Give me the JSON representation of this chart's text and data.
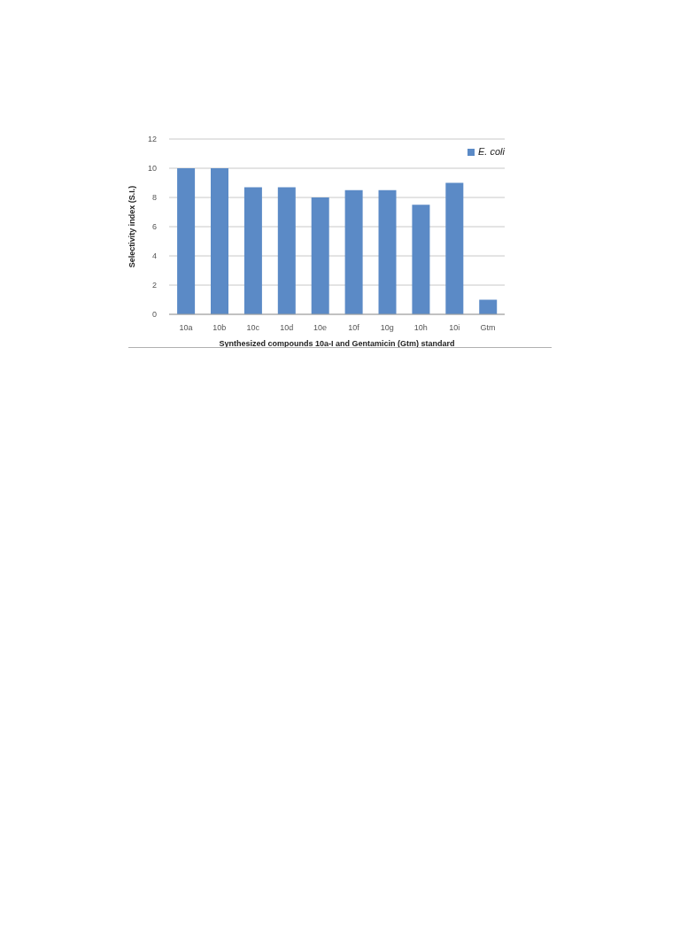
{
  "chart_data": {
    "type": "bar",
    "xlabel": "Synthesized compounds 10a-I and Gentamicin (Gtm) standard",
    "ylabel": "Selectivity index (S.I.)",
    "categories": [
      "10a",
      "10b",
      "10c",
      "10d",
      "10e",
      "10f",
      "10g",
      "10h",
      "10i",
      "Gtm"
    ],
    "series": [
      {
        "name": "E. coli",
        "color": "#5b8ac6",
        "values": [
          10,
          10,
          8.7,
          8.7,
          8,
          8.5,
          8.5,
          7.5,
          9,
          1
        ]
      }
    ],
    "ylim": [
      0,
      12
    ],
    "yticks": [
      0,
      2,
      4,
      6,
      8,
      10,
      12
    ],
    "grid": "y",
    "legend": "top right"
  }
}
